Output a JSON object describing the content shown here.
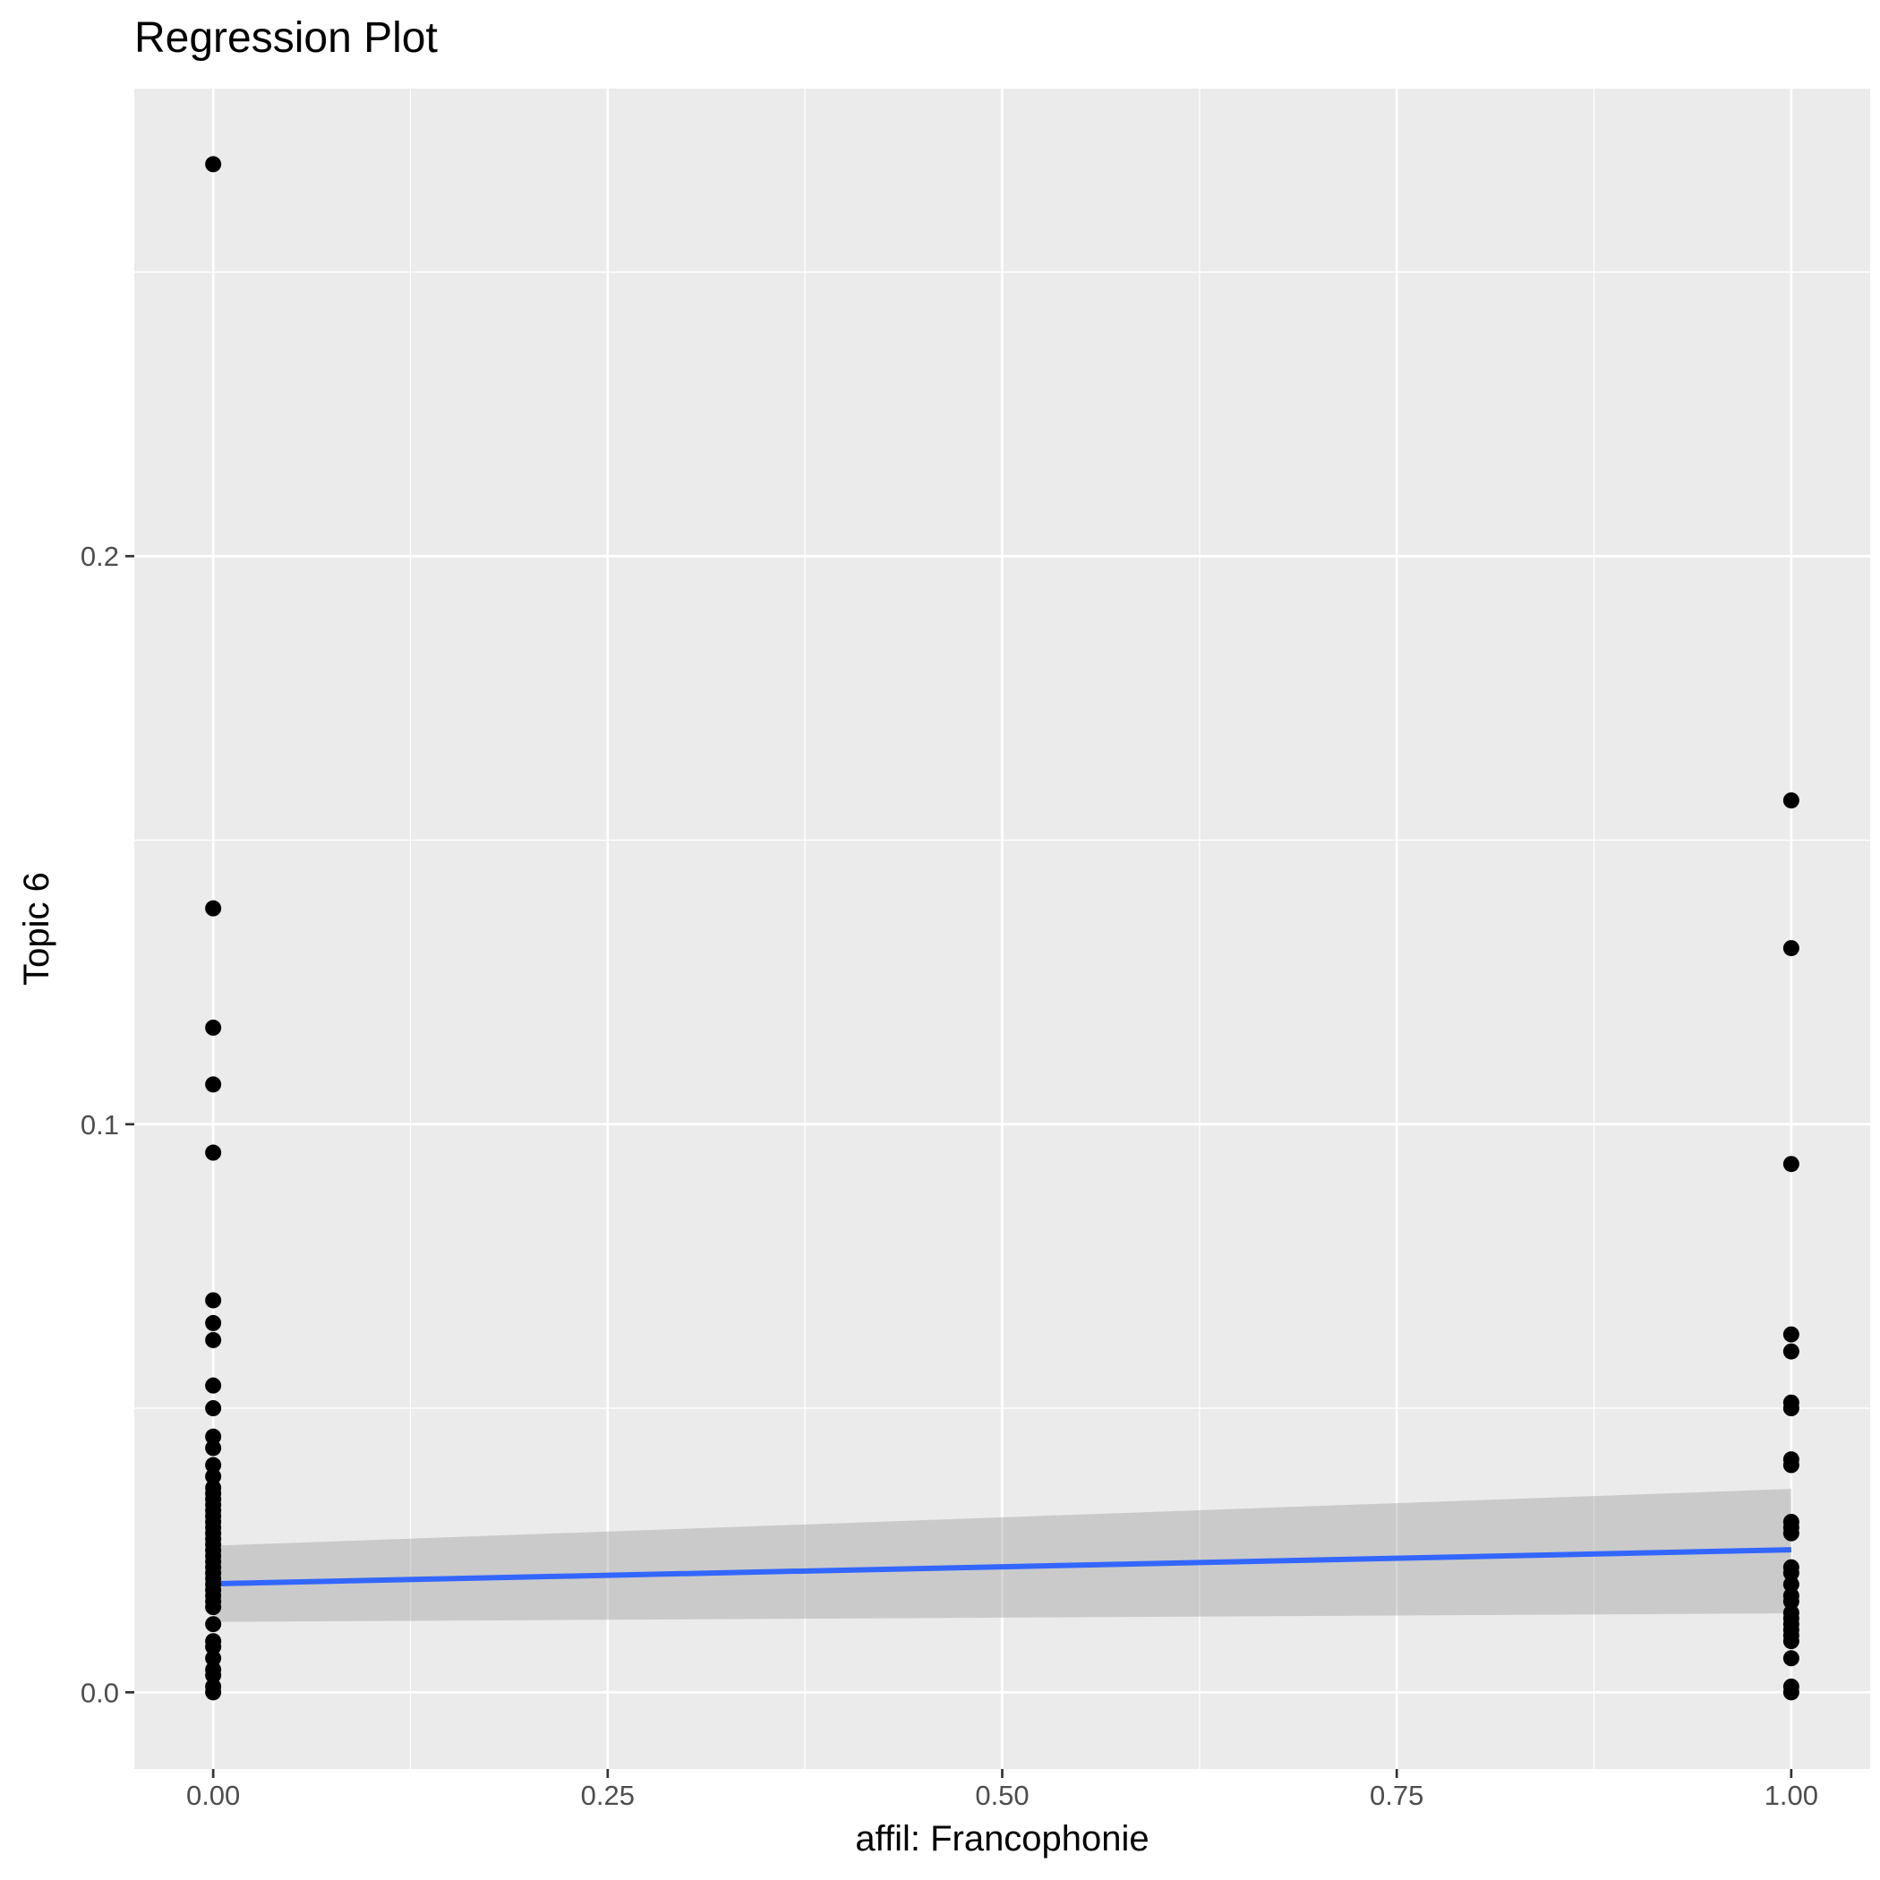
{
  "chart_data": {
    "type": "scatter",
    "title": "Regression Plot",
    "xlabel": "affil: Francophonie",
    "ylabel": "Topic 6",
    "xlim": [
      -0.05,
      1.05
    ],
    "ylim": [
      -0.0135,
      0.2823
    ],
    "x_ticks": [
      0.0,
      0.25,
      0.5,
      0.75,
      1.0
    ],
    "x_tick_labels": [
      "0.00",
      "0.25",
      "0.50",
      "0.75",
      "1.00"
    ],
    "y_ticks": [
      0.0,
      0.1,
      0.2
    ],
    "y_tick_labels": [
      "0.0",
      "0.1",
      "0.2"
    ],
    "grid": true,
    "background": "#ebebeb",
    "grid_color": "#ffffff",
    "point_color": "#000000",
    "line_color": "#3366ff",
    "ribbon_color": "#999999",
    "series": [
      {
        "x": 0,
        "values": [
          0.269,
          0.138,
          0.117,
          0.107,
          0.095,
          0.069,
          0.065,
          0.062,
          0.054,
          0.05,
          0.045,
          0.043,
          0.04,
          0.038,
          0.036,
          0.035,
          0.034,
          0.033,
          0.032,
          0.031,
          0.03,
          0.029,
          0.028,
          0.027,
          0.026,
          0.025,
          0.024,
          0.023,
          0.022,
          0.021,
          0.02,
          0.019,
          0.018,
          0.017,
          0.016,
          0.015,
          0.012,
          0.009,
          0.008,
          0.006,
          0.004,
          0.003,
          0.001,
          0.0
        ]
      },
      {
        "x": 1,
        "values": [
          0.157,
          0.131,
          0.093,
          0.063,
          0.06,
          0.051,
          0.05,
          0.041,
          0.04,
          0.03,
          0.029,
          0.028,
          0.022,
          0.021,
          0.019,
          0.017,
          0.016,
          0.014,
          0.013,
          0.012,
          0.011,
          0.01,
          0.009,
          0.006,
          0.001,
          0.0
        ]
      }
    ],
    "regression": {
      "x": [
        0,
        1
      ],
      "y": [
        0.0191,
        0.0251
      ],
      "ci_lower": [
        0.0124,
        0.0139
      ],
      "ci_upper": [
        0.0258,
        0.0358
      ]
    }
  }
}
